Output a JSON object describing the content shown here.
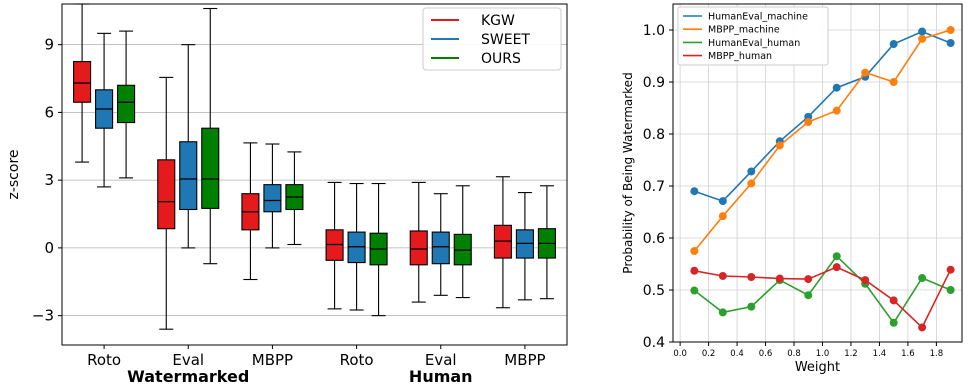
{
  "chart_data": [
    {
      "type": "box",
      "ylabel": "z-score",
      "ylim": [
        -4.3,
        10.8
      ],
      "yticks": [
        -3,
        0,
        3,
        6,
        9
      ],
      "ytick_labels": [
        "−3",
        "0",
        "3",
        "6",
        "9"
      ],
      "grid": "horizontal",
      "legend": "top-right",
      "groups": [
        {
          "name": "Watermarked",
          "categories": [
            "Roto",
            "Eval",
            "MBPP"
          ]
        },
        {
          "name": "Human",
          "categories": [
            "Roto",
            "Eval",
            "MBPP"
          ]
        }
      ],
      "series": [
        {
          "name": "KGW",
          "color": "#e41a1c",
          "boxes": [
            {
              "whislo": 3.8,
              "q1": 6.45,
              "med": 7.3,
              "q3": 8.25,
              "whishi": 10.8
            },
            {
              "whislo": -3.6,
              "q1": 0.85,
              "med": 2.05,
              "q3": 3.9,
              "whishi": 7.55
            },
            {
              "whislo": -1.4,
              "q1": 0.8,
              "med": 1.6,
              "q3": 2.4,
              "whishi": 4.65
            },
            {
              "whislo": -2.7,
              "q1": -0.55,
              "med": 0.15,
              "q3": 0.8,
              "whishi": 2.9
            },
            {
              "whislo": -2.4,
              "q1": -0.75,
              "med": -0.05,
              "q3": 0.75,
              "whishi": 2.9
            },
            {
              "whislo": -2.65,
              "q1": -0.45,
              "med": 0.3,
              "q3": 1.0,
              "whishi": 3.15
            }
          ]
        },
        {
          "name": "SWEET",
          "color": "#1f77b4",
          "boxes": [
            {
              "whislo": 2.7,
              "q1": 5.3,
              "med": 6.15,
              "q3": 7.0,
              "whishi": 9.5
            },
            {
              "whislo": 0.0,
              "q1": 1.7,
              "med": 3.05,
              "q3": 4.7,
              "whishi": 9.0
            },
            {
              "whislo": 0.0,
              "q1": 1.6,
              "med": 2.1,
              "q3": 2.8,
              "whishi": 4.6
            },
            {
              "whislo": -2.75,
              "q1": -0.65,
              "med": 0.05,
              "q3": 0.7,
              "whishi": 2.85
            },
            {
              "whislo": -2.1,
              "q1": -0.7,
              "med": 0.05,
              "q3": 0.7,
              "whishi": 2.4
            },
            {
              "whislo": -2.3,
              "q1": -0.45,
              "med": 0.2,
              "q3": 0.8,
              "whishi": 2.45
            }
          ]
        },
        {
          "name": "OURS",
          "color": "#008000",
          "boxes": [
            {
              "whislo": 3.1,
              "q1": 5.55,
              "med": 6.45,
              "q3": 7.2,
              "whishi": 9.6
            },
            {
              "whislo": -0.7,
              "q1": 1.75,
              "med": 3.05,
              "q3": 5.3,
              "whishi": 10.6
            },
            {
              "whislo": 0.15,
              "q1": 1.7,
              "med": 2.25,
              "q3": 2.8,
              "whishi": 4.25
            },
            {
              "whislo": -3.0,
              "q1": -0.75,
              "med": -0.05,
              "q3": 0.65,
              "whishi": 2.85
            },
            {
              "whislo": -2.2,
              "q1": -0.75,
              "med": -0.1,
              "q3": 0.6,
              "whishi": 2.75
            },
            {
              "whislo": -2.25,
              "q1": -0.45,
              "med": 0.2,
              "q3": 0.85,
              "whishi": 2.75
            }
          ]
        }
      ]
    },
    {
      "type": "line",
      "xlabel": "Weight",
      "ylabel": "Probability of Being Watermarked",
      "xlim": [
        -0.05,
        1.98
      ],
      "ylim": [
        0.4,
        1.05
      ],
      "xticks": [
        0.0,
        0.2,
        0.4,
        0.6,
        0.8,
        1.0,
        1.2,
        1.4,
        1.6,
        1.8
      ],
      "xtick_labels": [
        "0.0",
        "0.2",
        "0.4",
        "0.6",
        "0.8",
        "1.0",
        "1.2",
        "1.4",
        "1.6",
        "1.8"
      ],
      "yticks": [
        0.4,
        0.5,
        0.6,
        0.7,
        0.8,
        0.9,
        1.0
      ],
      "ytick_labels": [
        "0.4",
        "0.5",
        "0.6",
        "0.7",
        "0.8",
        "0.9",
        "1.0"
      ],
      "grid": true,
      "legend": "top-left",
      "x": [
        0.1,
        0.3,
        0.5,
        0.7,
        0.9,
        1.1,
        1.3,
        1.5,
        1.7,
        1.9
      ],
      "series": [
        {
          "name": "HumanEval_machine",
          "color": "#1f77b4",
          "values": [
            0.69,
            0.671,
            0.728,
            0.786,
            0.833,
            0.889,
            0.91,
            0.973,
            0.997,
            0.975
          ]
        },
        {
          "name": "MBPP_machine",
          "color": "#ff7f0e",
          "values": [
            0.575,
            0.642,
            0.705,
            0.778,
            0.823,
            0.845,
            0.918,
            0.9,
            0.983,
            1.0
          ]
        },
        {
          "name": "HumanEval_human",
          "color": "#2ca02c",
          "values": [
            0.499,
            0.457,
            0.468,
            0.519,
            0.49,
            0.565,
            0.512,
            0.437,
            0.523,
            0.5
          ]
        },
        {
          "name": "MBPP_human",
          "color": "#d62728",
          "values": [
            0.537,
            0.527,
            0.525,
            0.522,
            0.521,
            0.544,
            0.519,
            0.48,
            0.428,
            0.539
          ]
        }
      ]
    }
  ]
}
